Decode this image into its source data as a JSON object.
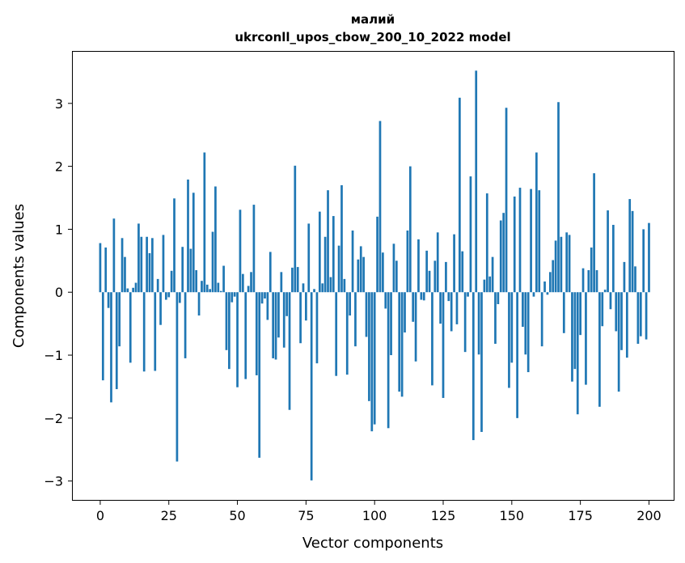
{
  "chart_data": {
    "type": "bar",
    "title_line1": "малий",
    "title_line2": "ukrconll_upos_cbow_200_10_2022 model",
    "xlabel": "Vector components",
    "ylabel": "Components values",
    "xlim": [
      -10,
      209
    ],
    "ylim": [
      -3.3,
      3.82
    ],
    "xticks": [
      0,
      25,
      50,
      75,
      100,
      125,
      150,
      175,
      200
    ],
    "xtick_labels": [
      "0",
      "25",
      "50",
      "75",
      "100",
      "125",
      "150",
      "175",
      "200"
    ],
    "yticks": [
      -3,
      -2,
      -1,
      0,
      1,
      2,
      3
    ],
    "ytick_labels": [
      "−3",
      "−2",
      "−1",
      "0",
      "1",
      "2",
      "3"
    ],
    "grid": false,
    "bar_color": "#1f77b4",
    "values": [
      0.78,
      -1.4,
      0.71,
      -0.25,
      -1.75,
      1.17,
      -1.54,
      -0.86,
      0.86,
      0.56,
      0.06,
      -1.12,
      0.07,
      0.15,
      1.09,
      0.88,
      -1.26,
      0.88,
      0.62,
      0.86,
      -1.25,
      0.21,
      -0.52,
      0.91,
      -0.12,
      -0.08,
      0.34,
      1.49,
      -2.69,
      -0.17,
      0.72,
      -1.05,
      1.79,
      0.69,
      1.58,
      0.35,
      -0.37,
      0.18,
      2.22,
      0.12,
      0.05,
      0.96,
      1.68,
      0.15,
      0.02,
      0.42,
      -0.92,
      -1.22,
      -0.16,
      -0.07,
      -1.51,
      1.31,
      0.29,
      -1.38,
      0.1,
      0.32,
      1.39,
      -1.32,
      -2.63,
      -0.18,
      -0.1,
      -0.44,
      0.64,
      -1.05,
      -1.07,
      -0.72,
      0.32,
      -0.88,
      -0.38,
      -1.87,
      0.39,
      2.01,
      0.4,
      -0.81,
      0.14,
      -0.45,
      1.09,
      -2.99,
      0.05,
      -1.13,
      1.28,
      0.14,
      0.88,
      1.62,
      0.24,
      1.21,
      -1.33,
      0.74,
      1.7,
      0.21,
      -1.31,
      -0.37,
      0.98,
      -0.86,
      0.52,
      0.73,
      0.56,
      -0.71,
      -1.73,
      -2.21,
      -2.1,
      1.2,
      2.72,
      0.63,
      -0.26,
      -2.16,
      -1.0,
      0.77,
      0.5,
      -1.58,
      -1.66,
      -0.64,
      0.98,
      2.0,
      -0.47,
      -1.1,
      0.84,
      -0.12,
      -0.13,
      0.66,
      0.34,
      -1.48,
      0.5,
      0.95,
      -0.5,
      -1.68,
      0.48,
      -0.14,
      -0.62,
      0.92,
      -0.51,
      3.09,
      0.65,
      -0.95,
      -0.07,
      1.84,
      -2.35,
      3.52,
      -0.99,
      -2.22,
      0.2,
      1.57,
      0.25,
      0.56,
      -0.82,
      -0.19,
      1.14,
      1.26,
      2.93,
      -1.52,
      -1.12,
      1.52,
      -2.0,
      1.66,
      -0.55,
      -0.99,
      -1.27,
      1.64,
      -0.07,
      2.22,
      1.62,
      -0.86,
      0.17,
      -0.04,
      0.32,
      0.51,
      0.82,
      3.02,
      0.88,
      -0.65,
      0.95,
      0.91,
      -1.42,
      -1.22,
      -1.94,
      -0.68,
      0.38,
      -1.47,
      0.35,
      0.71,
      1.89,
      0.35,
      -1.82,
      -0.54,
      0.04,
      1.3,
      -0.27,
      1.07,
      -0.62,
      -1.58,
      -0.92,
      0.48,
      -1.04,
      1.48,
      1.29,
      0.41,
      -0.82,
      -0.7,
      1.0,
      -0.75,
      1.1
    ]
  }
}
